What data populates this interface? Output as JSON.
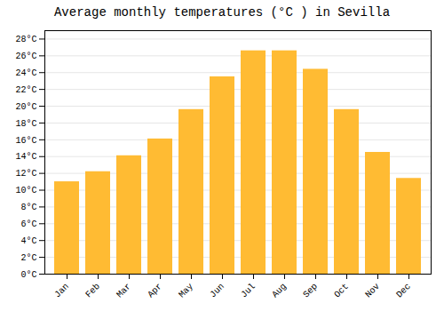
{
  "chart_data": {
    "type": "bar",
    "title": "Average monthly temperatures (°C ) in Sevilla",
    "categories": [
      "Jan",
      "Feb",
      "Mar",
      "Apr",
      "May",
      "Jun",
      "Jul",
      "Aug",
      "Sep",
      "Oct",
      "Nov",
      "Dec"
    ],
    "values": [
      11.0,
      12.2,
      14.1,
      16.1,
      19.6,
      23.5,
      26.6,
      26.6,
      24.4,
      19.6,
      14.5,
      11.4
    ],
    "color": "#FFBB33",
    "ylim": [
      0,
      29
    ],
    "yticks": [
      {
        "value": 0,
        "label": "0°C"
      },
      {
        "value": 2,
        "label": "2°C"
      },
      {
        "value": 4,
        "label": "4°C"
      },
      {
        "value": 6,
        "label": "6°C"
      },
      {
        "value": 8,
        "label": "8°C"
      },
      {
        "value": 10,
        "label": "10°C"
      },
      {
        "value": 12,
        "label": "12°C"
      },
      {
        "value": 14,
        "label": "14°C"
      },
      {
        "value": 16,
        "label": "16°C"
      },
      {
        "value": 18,
        "label": "18°C"
      },
      {
        "value": 20,
        "label": "20°C"
      },
      {
        "value": 22,
        "label": "22°C"
      },
      {
        "value": 24,
        "label": "24°C"
      },
      {
        "value": 26,
        "label": "26°C"
      },
      {
        "value": 28,
        "label": "28°C"
      }
    ],
    "grid": true
  }
}
